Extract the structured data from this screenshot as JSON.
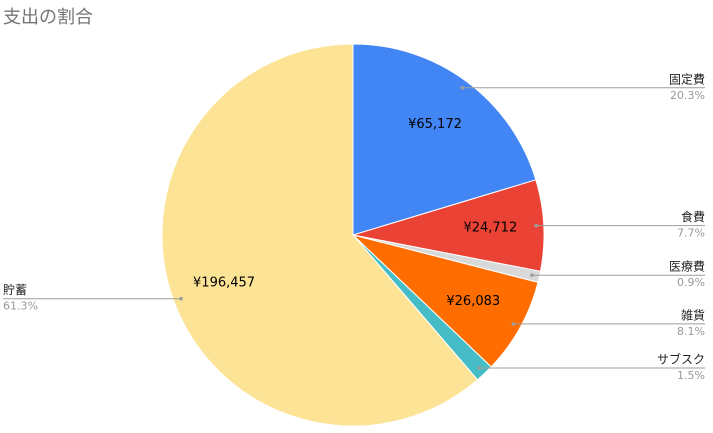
{
  "chart_data": {
    "type": "pie",
    "title": "支出の割合",
    "categories": [
      "固定費",
      "食費",
      "医療費",
      "雑貨",
      "サブスク",
      "貯蓄"
    ],
    "values": [
      65172,
      24712,
      3023,
      26083,
      5038,
      196457
    ],
    "value_labels": [
      "¥65,172",
      "¥24,712",
      null,
      "¥26,083",
      null,
      "¥196,457"
    ],
    "percents": [
      20.3,
      7.7,
      0.9,
      8.1,
      1.5,
      61.3
    ],
    "percent_labels": [
      "20.3%",
      "7.7%",
      "0.9%",
      "8.1%",
      "1.5%",
      "61.3%"
    ],
    "colors": [
      "#4285f4",
      "#ea4335",
      "#d9d9d9",
      "#ff6d01",
      "#46bdc6",
      "#fde396"
    ]
  }
}
